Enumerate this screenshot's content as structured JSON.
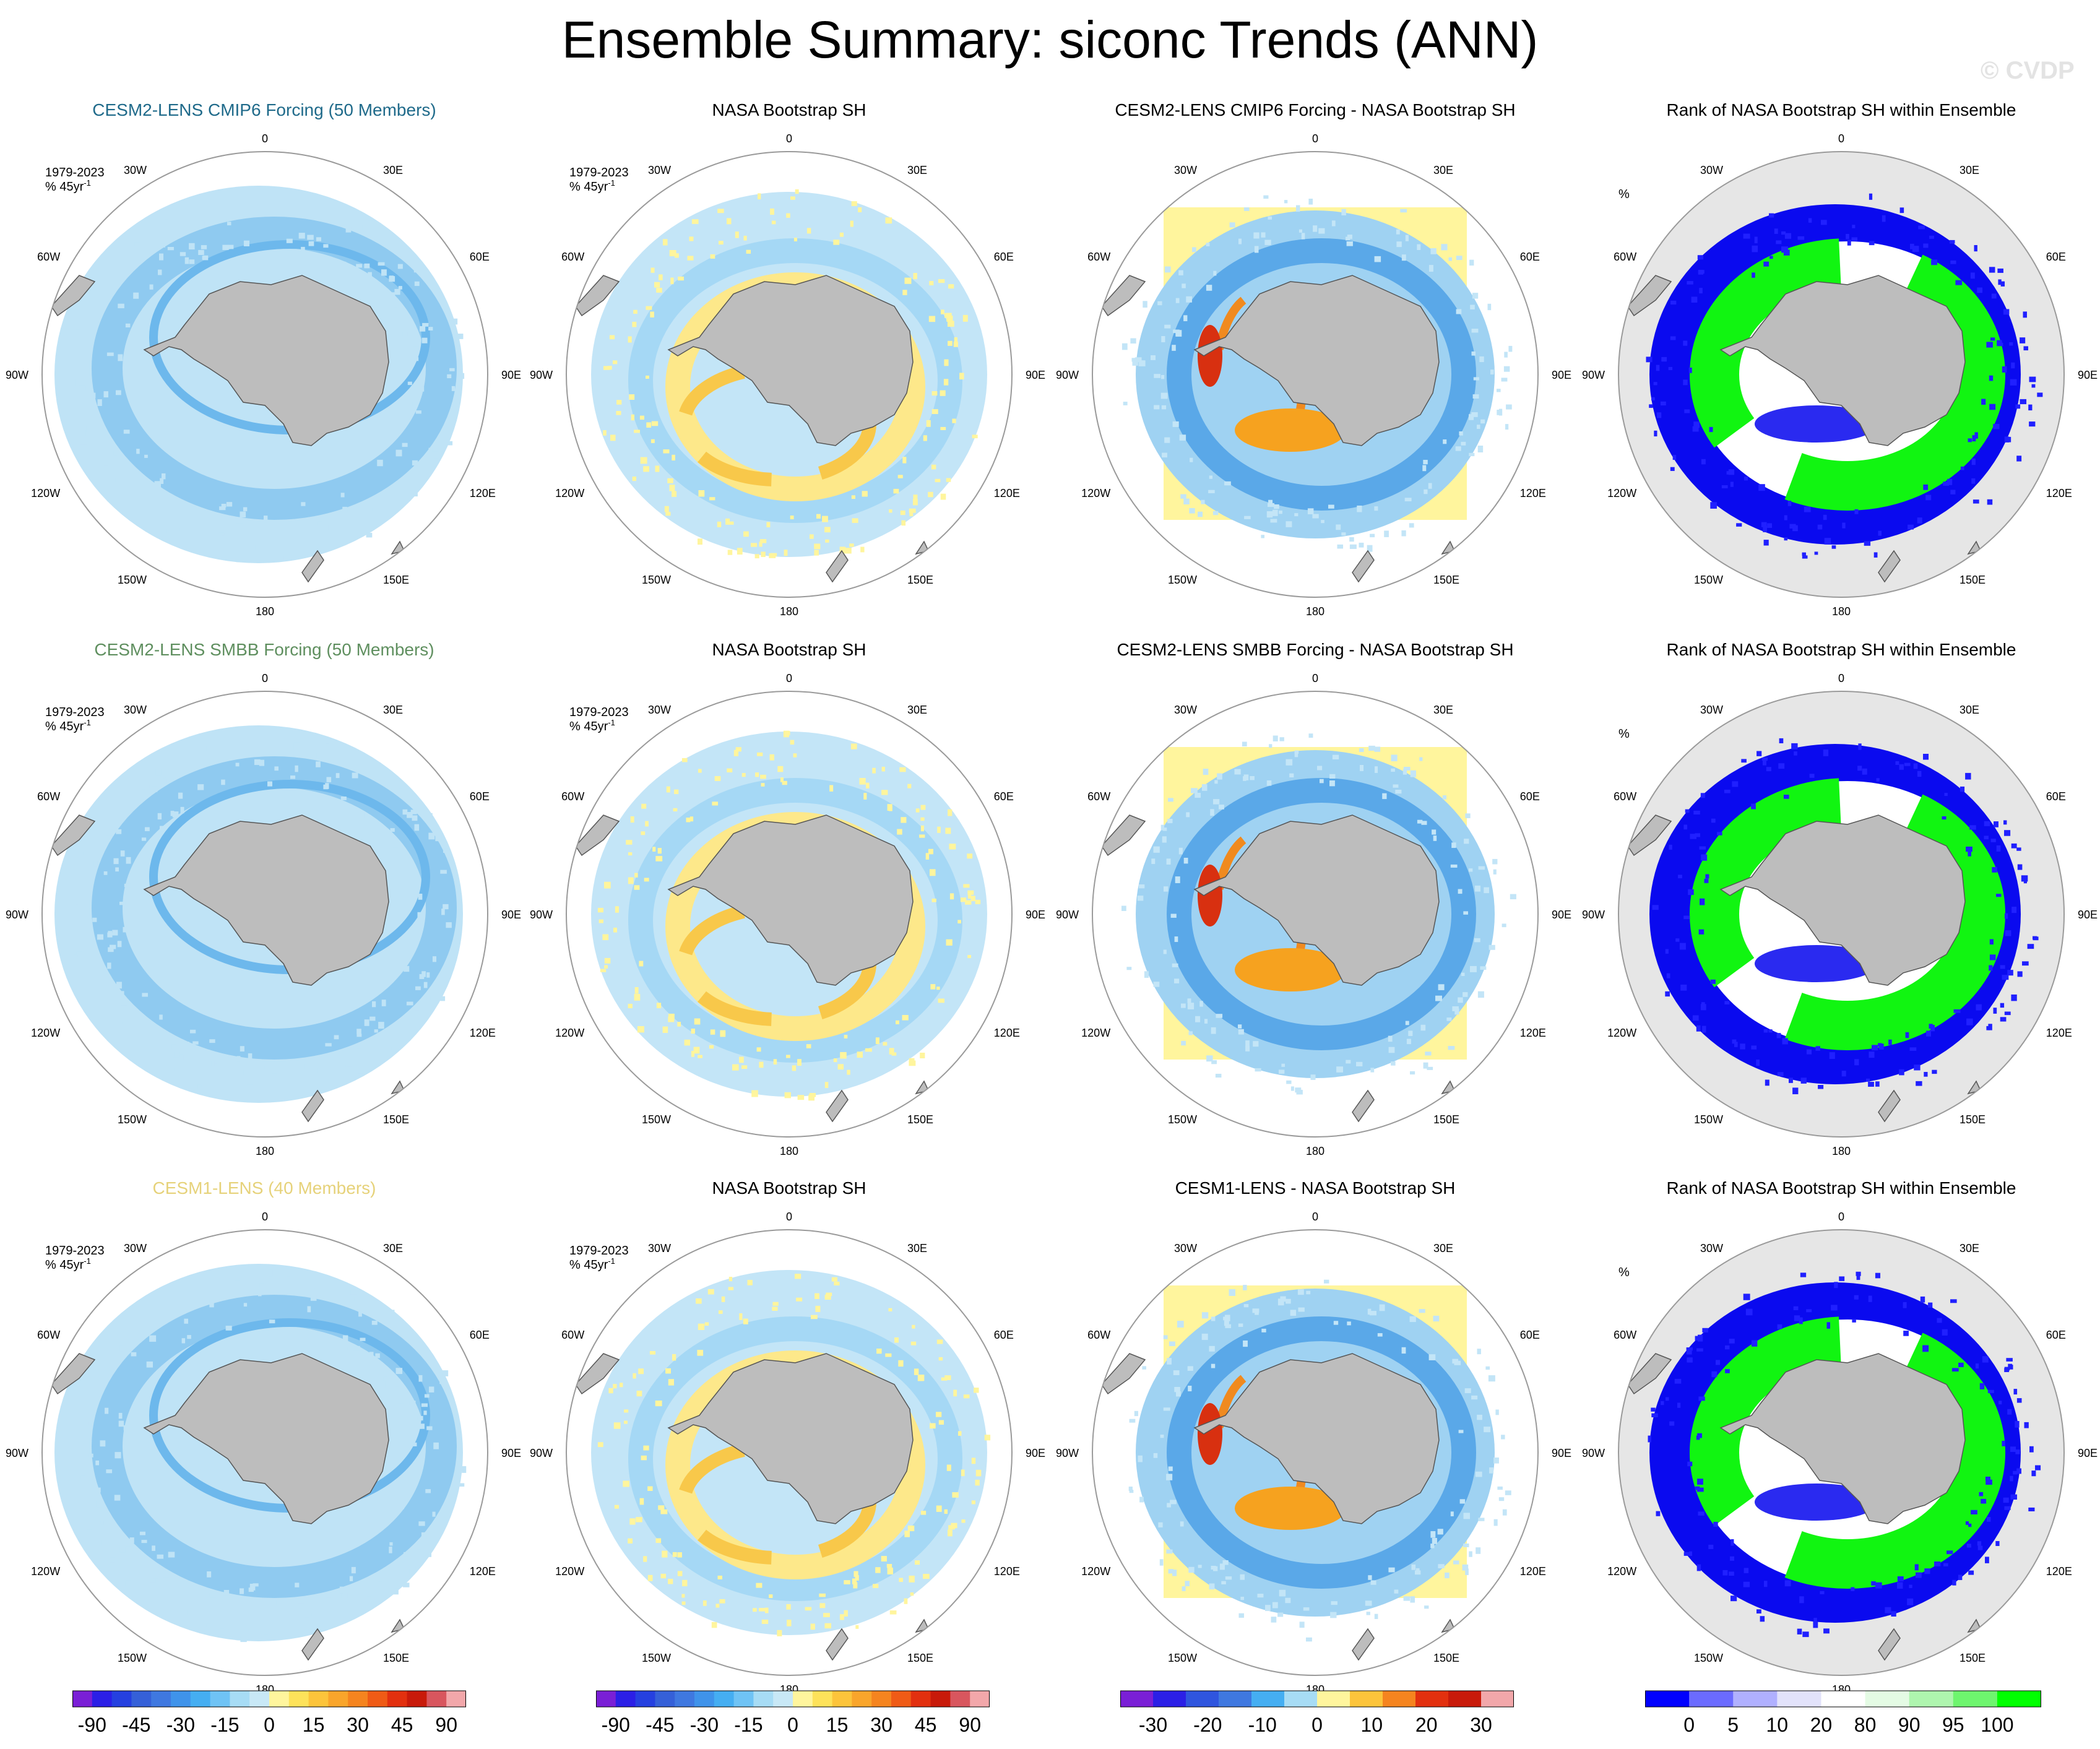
{
  "title": "Ensemble Summary: siconc Trends (ANN)",
  "watermark": "© CVDP",
  "period": "1979-2023",
  "units": "% 45yr",
  "units_sup": "-1",
  "rank_units": "%",
  "lon_labels": [
    "0",
    "30E",
    "60E",
    "90E",
    "120E",
    "150E",
    "180",
    "150W",
    "120W",
    "90W",
    "60W",
    "30W"
  ],
  "colors": {
    "title_cmip6": "#1f6a8a",
    "title_smbb": "#5f8f5f",
    "title_cesm1": "#e6d27a",
    "land": "#bdbdbd",
    "ocean_bg": "#e6e6e6"
  },
  "rows": [
    {
      "panels": [
        {
          "title": "CESM2-LENS CMIP6 Forcing (50 Members)",
          "type": "ensemble",
          "title_color": "#1f6a8a"
        },
        {
          "title": "NASA Bootstrap SH",
          "type": "obs"
        },
        {
          "title": "CESM2-LENS CMIP6 Forcing - NASA Bootstrap SH",
          "type": "diff"
        },
        {
          "title": "Rank of NASA Bootstrap SH within Ensemble",
          "type": "rank"
        }
      ]
    },
    {
      "panels": [
        {
          "title": "CESM2-LENS SMBB Forcing (50 Members)",
          "type": "ensemble",
          "title_color": "#5f8f5f"
        },
        {
          "title": "NASA Bootstrap SH",
          "type": "obs"
        },
        {
          "title": "CESM2-LENS SMBB Forcing - NASA Bootstrap SH",
          "type": "diff"
        },
        {
          "title": "Rank of NASA Bootstrap SH within Ensemble",
          "type": "rank"
        }
      ]
    },
    {
      "panels": [
        {
          "title": "CESM1-LENS (40 Members)",
          "type": "ensemble",
          "title_color": "#e6d27a"
        },
        {
          "title": "NASA Bootstrap SH",
          "type": "obs"
        },
        {
          "title": "CESM1-LENS - NASA Bootstrap SH",
          "type": "diff"
        },
        {
          "title": "Rank of NASA Bootstrap SH within Ensemble",
          "type": "rank"
        }
      ]
    }
  ],
  "colorbars": [
    {
      "labels": [
        "-90",
        "-45",
        "-30",
        "-15",
        "0",
        "15",
        "30",
        "45",
        "90"
      ],
      "colors": [
        "#7a1fd6",
        "#2b1fe6",
        "#2540e0",
        "#3560d8",
        "#3f78e0",
        "#3f93ea",
        "#45aef2",
        "#6fc3f5",
        "#a7dcf5",
        "#c8e8f6",
        "#fff59d",
        "#fde25a",
        "#fcc43b",
        "#f9a52b",
        "#f5841f",
        "#ef5b16",
        "#e2300f",
        "#c81a0a",
        "#d8565e",
        "#f2a7aa"
      ]
    },
    {
      "labels": [
        "-90",
        "-45",
        "-30",
        "-15",
        "0",
        "15",
        "30",
        "45",
        "90"
      ],
      "colors": [
        "#7a1fd6",
        "#2b1fe6",
        "#2540e0",
        "#3560d8",
        "#3f78e0",
        "#3f93ea",
        "#45aef2",
        "#6fc3f5",
        "#a7dcf5",
        "#c8e8f6",
        "#fff59d",
        "#fde25a",
        "#fcc43b",
        "#f9a52b",
        "#f5841f",
        "#ef5b16",
        "#e2300f",
        "#c81a0a",
        "#d8565e",
        "#f2a7aa"
      ]
    },
    {
      "labels": [
        "-30",
        "-20",
        "-10",
        "0",
        "10",
        "20",
        "30"
      ],
      "colors": [
        "#7a1fd6",
        "#2b1fe6",
        "#2f55de",
        "#3f78e0",
        "#45aef2",
        "#a7dcf5",
        "#fff59d",
        "#fcc43b",
        "#f5841f",
        "#e2300f",
        "#c81a0a",
        "#f2a7aa"
      ]
    },
    {
      "labels": [
        "0",
        "5",
        "10",
        "20",
        "80",
        "90",
        "95",
        "100"
      ],
      "colors": [
        "#0000ff",
        "#6b6bff",
        "#b0b0ff",
        "#e2e2fa",
        "#ffffff",
        "#e4fbe4",
        "#aef5ae",
        "#6ef56e",
        "#00ff00"
      ]
    }
  ]
}
